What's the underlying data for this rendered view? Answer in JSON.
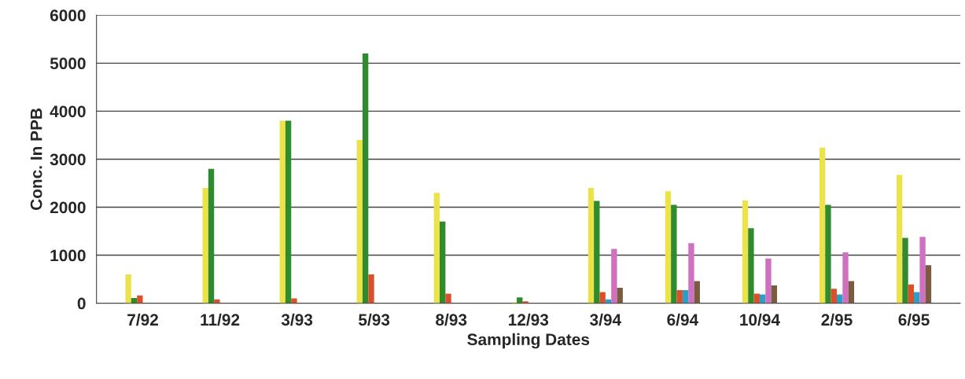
{
  "chart_data": {
    "type": "bar",
    "xlabel": "Sampling Dates",
    "ylabel": "Conc. In PPB",
    "categories": [
      "7/92",
      "11/92",
      "3/93",
      "5/93",
      "8/93",
      "12/93",
      "3/94",
      "6/94",
      "10/94",
      "2/95",
      "6/95"
    ],
    "series": [
      {
        "color": "#ece24a",
        "values": [
          600,
          2400,
          3800,
          3400,
          2300,
          20,
          2400,
          2330,
          2140,
          3240,
          2670
        ]
      },
      {
        "color": "#2e8b2e",
        "values": [
          110,
          2800,
          3800,
          5200,
          1700,
          120,
          2130,
          2050,
          1560,
          2050,
          1360
        ]
      },
      {
        "color": "#d9502a",
        "values": [
          160,
          80,
          100,
          600,
          200,
          40,
          230,
          270,
          200,
          300,
          390
        ]
      },
      {
        "color": "#2aa0c8",
        "values": [
          null,
          null,
          null,
          null,
          null,
          null,
          80,
          270,
          180,
          180,
          230
        ]
      },
      {
        "color": "#d070c0",
        "values": [
          null,
          null,
          null,
          null,
          null,
          null,
          1130,
          1250,
          930,
          1060,
          1380
        ]
      },
      {
        "color": "#7a5a40",
        "values": [
          null,
          null,
          null,
          null,
          null,
          null,
          320,
          460,
          370,
          460,
          790
        ]
      }
    ],
    "ylim": [
      0,
      6000
    ],
    "yticks": [
      0,
      1000,
      2000,
      3000,
      4000,
      5000,
      6000
    ],
    "grid": "y"
  }
}
